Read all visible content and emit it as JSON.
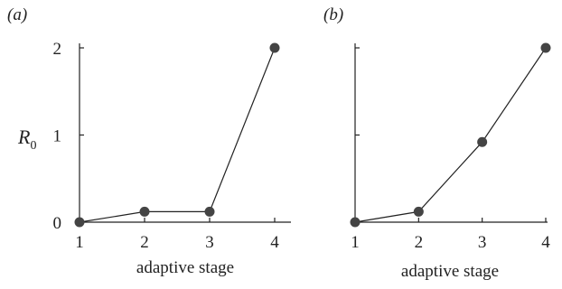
{
  "chart_data": [
    {
      "type": "line",
      "panel_label": "(a)",
      "xlabel": "adaptive stage",
      "ylabel": "R",
      "ylabel_sub": "0",
      "x_ticks": [
        "1",
        "2",
        "3",
        "4"
      ],
      "y_ticks": [
        "0",
        "1",
        "2"
      ],
      "xlim": [
        1,
        4
      ],
      "ylim": [
        0,
        2
      ],
      "grid": false,
      "x": [
        1,
        2,
        3,
        4
      ],
      "series": [
        {
          "values": [
            0.0,
            0.12,
            0.12,
            2.0
          ]
        }
      ]
    },
    {
      "type": "line",
      "panel_label": "(b)",
      "xlabel": "adaptive stage",
      "x_ticks": [
        "1",
        "2",
        "3",
        "4"
      ],
      "xlim": [
        1,
        4
      ],
      "ylim": [
        0,
        2
      ],
      "grid": false,
      "x": [
        1,
        2,
        3,
        4
      ],
      "series": [
        {
          "values": [
            0.0,
            0.12,
            0.92,
            2.0
          ]
        }
      ]
    }
  ]
}
